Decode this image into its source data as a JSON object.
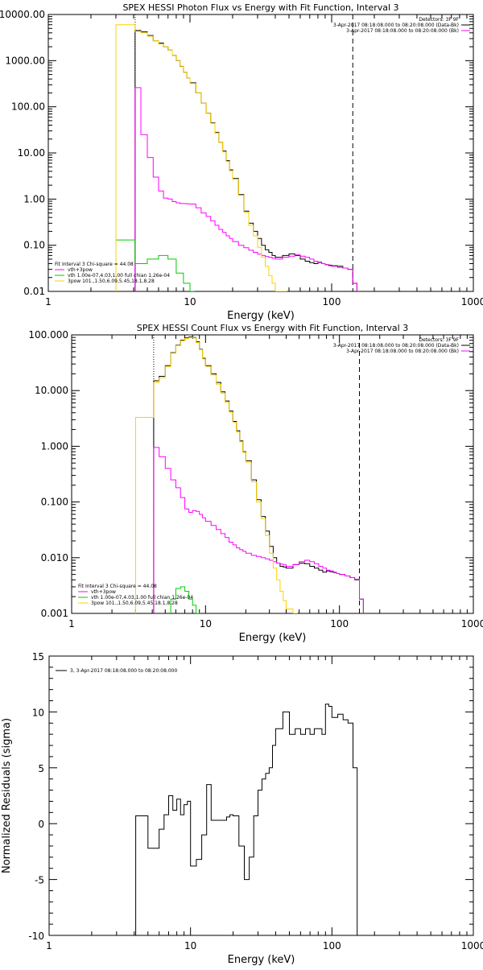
{
  "colors": {
    "data": "#000000",
    "total": "#ff00ff",
    "vth": "#00cc00",
    "pow": "#ffd000",
    "background": "#ffffff"
  },
  "chart_data": [
    {
      "type": "line",
      "title": "SPEX HESSI Photon Flux vs Energy with Fit Function, Interval 3",
      "xlabel": "Energy (keV)",
      "ylabel": "",
      "xscale": "log",
      "yscale": "log",
      "xlim": [
        1,
        1000
      ],
      "ylim": [
        0.01,
        10000
      ],
      "xticks": [
        "1",
        "10",
        "100",
        "1000"
      ],
      "yticks": [
        "0.01",
        "0.10",
        "1.00",
        "10.00",
        "100.00",
        "1000.00",
        "10000.00"
      ],
      "vlines": {
        "dotted": 4.1,
        "dashed": 141
      },
      "legend_topright": [
        "Detectors: 3F 9F",
        "3-Apr-2017 08:18:08.000 to 08:20:08.000 (Data-Bk)",
        "3-Apr-2017 08:18:08.000 to 08:20:08.000 (Bk)"
      ],
      "legend_bottomleft": [
        "Fit Interval 3   Chi-square = 44.08",
        "vth+3pow",
        "vth 1.00e-07,4.03,1.00   full chian 1.26e-04",
        "3pow 101.,1.50,6.09,5.45,18.1,8.28"
      ],
      "series": [
        {
          "name": "3-Apr-2017 08:18:08.000 to 08:20:08.000 (Data-Bk)",
          "color": "#000000",
          "x": [
            4.1,
            4.5,
            5,
            5.5,
            6,
            6.5,
            7,
            7.5,
            8,
            8.5,
            9,
            9.5,
            10,
            11,
            12,
            13,
            14,
            15,
            16,
            17,
            18,
            19,
            20,
            22,
            24,
            26,
            28,
            30,
            32,
            34,
            36,
            38,
            40,
            45,
            50,
            55,
            60,
            65,
            70,
            75,
            80,
            85,
            90,
            95,
            100,
            110,
            120,
            130,
            141
          ],
          "y": [
            4500,
            4200,
            3500,
            2700,
            2400,
            2000,
            1700,
            1300,
            1000,
            750,
            560,
            420,
            330,
            200,
            120,
            73,
            45,
            28,
            17,
            11,
            6.8,
            4.3,
            2.8,
            1.25,
            0.55,
            0.3,
            0.2,
            0.14,
            0.1,
            0.08,
            0.07,
            0.06,
            0.055,
            0.06,
            0.065,
            0.06,
            0.05,
            0.045,
            0.042,
            0.04,
            0.043,
            0.04,
            0.038,
            0.037,
            0.036,
            0.035,
            0.032,
            0.03,
            0.015
          ]
        },
        {
          "name": "vth+3pow",
          "color": "#ff00ff",
          "x": [
            4.1,
            4.5,
            5,
            5.5,
            6,
            6.5,
            7,
            7.5,
            8,
            8.5,
            9,
            9.5,
            10,
            11,
            12,
            13,
            14,
            15,
            16,
            17,
            18,
            19,
            20,
            22,
            24,
            26,
            28,
            30,
            32,
            34,
            36,
            38,
            40,
            45,
            50,
            55,
            60,
            65,
            70,
            75,
            80,
            85,
            90,
            95,
            100,
            110,
            120,
            130,
            141
          ],
          "y": [
            260,
            25,
            8,
            3,
            1.5,
            1.05,
            1,
            0.88,
            0.83,
            0.8,
            0.8,
            0.79,
            0.78,
            0.65,
            0.5,
            0.42,
            0.34,
            0.27,
            0.22,
            0.19,
            0.16,
            0.14,
            0.12,
            0.1,
            0.088,
            0.078,
            0.07,
            0.064,
            0.06,
            0.057,
            0.055,
            0.052,
            0.05,
            0.055,
            0.058,
            0.062,
            0.058,
            0.055,
            0.05,
            0.045,
            0.042,
            0.04,
            0.038,
            0.036,
            0.035,
            0.033,
            0.032,
            0.03,
            0.015
          ]
        },
        {
          "name": "vth 1.00e-07,4.03,1.00   full chian 1.26e-04",
          "color": "#00cc00",
          "x": [
            3,
            4.1,
            5,
            6,
            7,
            8,
            9,
            10
          ],
          "y": [
            0.13,
            0.04,
            0.05,
            0.06,
            0.05,
            0.025,
            0.015,
            0.01
          ]
        },
        {
          "name": "3pow 101.,1.50,6.09,5.45,18.1,8.28",
          "color": "#ffd000",
          "x": [
            3,
            4.1,
            4.5,
            5,
            5.5,
            6,
            6.5,
            7,
            7.5,
            8,
            8.5,
            9,
            9.5,
            10,
            11,
            12,
            13,
            14,
            15,
            16,
            17,
            18,
            19,
            20,
            22,
            24,
            26,
            28,
            30,
            32,
            34,
            36,
            38,
            40,
            45
          ],
          "y": [
            6000,
            4300,
            4000,
            3400,
            2700,
            2300,
            2000,
            1700,
            1300,
            1000,
            760,
            560,
            420,
            320,
            200,
            120,
            72,
            44,
            27,
            17,
            10.5,
            6.5,
            4.1,
            2.7,
            1.2,
            0.52,
            0.27,
            0.16,
            0.09,
            0.055,
            0.035,
            0.022,
            0.015,
            0.01,
            0.01
          ]
        }
      ]
    },
    {
      "type": "line",
      "title": "SPEX HESSI Count Flux vs Energy with Fit Function, Interval 3",
      "xlabel": "Energy (keV)",
      "ylabel": "",
      "xscale": "log",
      "yscale": "log",
      "xlim": [
        1,
        1000
      ],
      "ylim": [
        0.001,
        100
      ],
      "xticks": [
        "1",
        "10",
        "100",
        "1000"
      ],
      "yticks": [
        "0.001",
        "0.010",
        "0.100",
        "1.000",
        "10.000",
        "100.000"
      ],
      "vlines": {
        "dotted": 4.1,
        "dashed": 141
      },
      "legend_topright": [
        "Detectors: 3F 9F",
        "3-Apr-2017 08:18:08.000 to 08:20:08.000 (Data-Bk)",
        "3-Apr-2017 08:18:08.000 to 08:20:08.000 (Bk)"
      ],
      "legend_bottomleft": [
        "Fit Interval 3   Chi-square = 44.08",
        "vth+3pow",
        "vth 1.00e-07,4.03,1.00   full chian 1.26e-04",
        "3pow 101.,1.50,6.09,5.45,18.1,8.28"
      ],
      "series": [
        {
          "name": "3-Apr-2017 08:18:08.000 to 08:20:08.000 (Data-Bk)",
          "color": "#000000",
          "x": [
            4.1,
            4.5,
            5,
            5.5,
            6,
            6.5,
            7,
            7.5,
            8,
            8.5,
            9,
            9.5,
            10,
            11,
            12,
            13,
            14,
            15,
            16,
            17,
            18,
            19,
            20,
            22,
            24,
            26,
            28,
            30,
            32,
            34,
            36,
            38,
            40,
            45,
            50,
            55,
            60,
            65,
            70,
            75,
            80,
            85,
            90,
            95,
            100,
            110,
            120,
            130,
            141
          ],
          "y": [
            15,
            18,
            28,
            48,
            65,
            80,
            88,
            92,
            90,
            75,
            55,
            38,
            28,
            20,
            14,
            9.5,
            6.5,
            4.3,
            2.8,
            1.9,
            1.25,
            0.8,
            0.55,
            0.25,
            0.11,
            0.055,
            0.03,
            0.016,
            0.01,
            0.008,
            0.007,
            0.0068,
            0.0065,
            0.0075,
            0.008,
            0.0078,
            0.007,
            0.0065,
            0.006,
            0.0055,
            0.0058,
            0.0056,
            0.0054,
            0.0052,
            0.005,
            0.0047,
            0.0044,
            0.004,
            0.0018
          ]
        },
        {
          "name": "vth+3pow",
          "color": "#ff00ff",
          "x": [
            4.1,
            4.5,
            5,
            5.5,
            6,
            6.5,
            7,
            7.5,
            8,
            8.5,
            9,
            9.5,
            10,
            11,
            12,
            13,
            14,
            15,
            16,
            17,
            18,
            19,
            20,
            22,
            24,
            26,
            28,
            30,
            32,
            34,
            36,
            38,
            40,
            45,
            50,
            55,
            60,
            65,
            70,
            75,
            80,
            85,
            90,
            95,
            100,
            110,
            120,
            130,
            141
          ],
          "y": [
            0.95,
            0.65,
            0.4,
            0.25,
            0.18,
            0.12,
            0.075,
            0.065,
            0.07,
            0.068,
            0.06,
            0.052,
            0.045,
            0.038,
            0.032,
            0.027,
            0.023,
            0.019,
            0.017,
            0.015,
            0.014,
            0.013,
            0.012,
            0.011,
            0.0105,
            0.01,
            0.0095,
            0.009,
            0.0085,
            0.008,
            0.0077,
            0.0074,
            0.007,
            0.0075,
            0.0085,
            0.009,
            0.0085,
            0.0078,
            0.007,
            0.0065,
            0.006,
            0.0058,
            0.0055,
            0.0052,
            0.005,
            0.0047,
            0.0044,
            0.0041,
            0.0018
          ]
        },
        {
          "name": "vth 1.00e-07,4.03,1.00   full chian 1.26e-04",
          "color": "#00cc00",
          "x": [
            5.5,
            6,
            6.5,
            7,
            7.5,
            8,
            8.5
          ],
          "y": [
            0.0018,
            0.0028,
            0.003,
            0.0025,
            0.0018,
            0.0014,
            0.001
          ]
        },
        {
          "name": "3pow 101.,1.50,6.09,5.45,18.1,8.28",
          "color": "#ffd000",
          "x": [
            3,
            4.1,
            4.5,
            5,
            5.5,
            6,
            6.5,
            7,
            7.5,
            8,
            8.5,
            9,
            9.5,
            10,
            11,
            12,
            13,
            14,
            15,
            16,
            17,
            18,
            19,
            20,
            22,
            24,
            26,
            28,
            30,
            32,
            34,
            36,
            38,
            40,
            45
          ],
          "y": [
            3.3,
            14,
            17,
            27,
            47,
            64,
            78,
            86,
            90,
            88,
            73,
            54,
            37,
            27,
            19,
            13,
            9,
            6.2,
            4.1,
            2.7,
            1.8,
            1.2,
            0.78,
            0.52,
            0.23,
            0.1,
            0.05,
            0.025,
            0.012,
            0.0065,
            0.004,
            0.0025,
            0.0017,
            0.0012,
            0.001
          ]
        }
      ]
    },
    {
      "type": "line",
      "title": "",
      "xlabel": "Energy (keV)",
      "ylabel": "Normalized Residuals (sigma)",
      "xscale": "log",
      "yscale": "linear",
      "xlim": [
        1,
        1000
      ],
      "ylim": [
        -10,
        15
      ],
      "xticks": [
        "1",
        "10",
        "100",
        "1000"
      ],
      "yticks": [
        "-10",
        "-5",
        "0",
        "5",
        "10",
        "15"
      ],
      "legend": [
        "3,  3-Apr-2017 08:18:08.000 to 08:20:08.000"
      ],
      "series": [
        {
          "name": "3,  3-Apr-2017 08:18:08.000 to 08:20:08.000",
          "color": "#000000",
          "x": [
            4.1,
            5,
            5.5,
            6,
            6.5,
            7,
            7.5,
            8,
            8.5,
            9,
            9.5,
            10,
            11,
            12,
            13,
            14,
            15,
            16,
            17,
            18,
            19,
            20,
            22,
            24,
            26,
            28,
            30,
            32,
            34,
            36,
            38,
            40,
            45,
            50,
            55,
            60,
            65,
            70,
            75,
            80,
            85,
            90,
            95,
            100,
            110,
            120,
            130,
            141
          ],
          "y": [
            0.7,
            -2.2,
            -2.2,
            -0.5,
            0.8,
            2.5,
            1.2,
            2.2,
            0.8,
            1.7,
            2.0,
            -3.8,
            -3.2,
            -1.0,
            3.5,
            0.3,
            0.3,
            0.3,
            0.3,
            0.6,
            0.8,
            0.7,
            -2.0,
            -5.0,
            -3.0,
            0.7,
            3.0,
            4.0,
            4.5,
            5.0,
            7.0,
            8.5,
            10.0,
            8.0,
            8.5,
            8.0,
            8.5,
            8.0,
            8.5,
            8.5,
            8.0,
            10.7,
            10.5,
            9.5,
            9.8,
            9.3,
            9.0,
            5.0
          ]
        }
      ]
    }
  ]
}
